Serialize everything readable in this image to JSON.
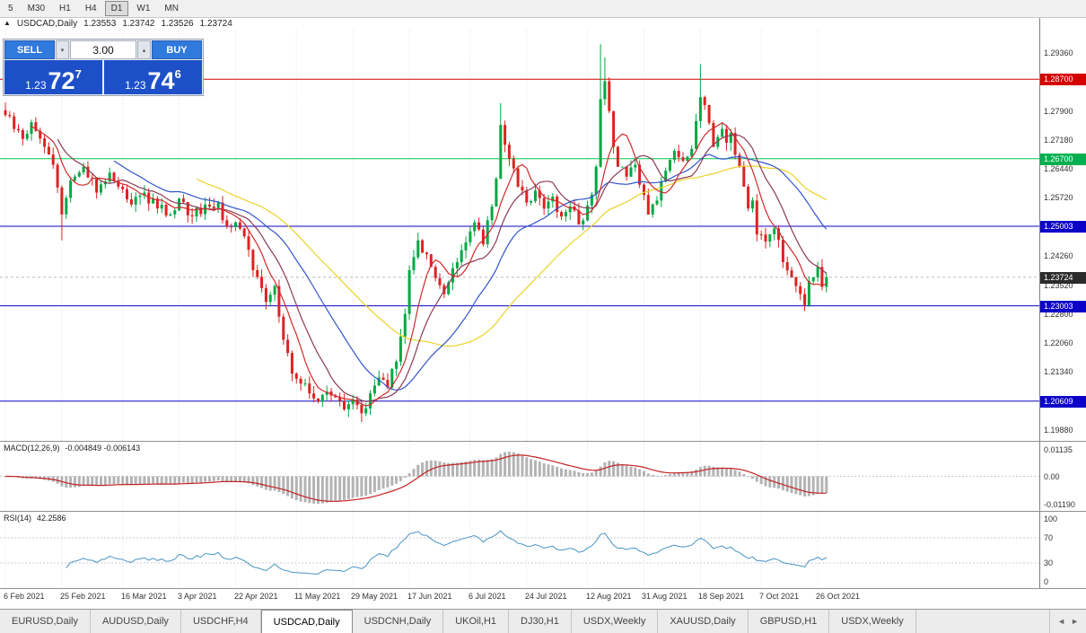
{
  "toolbar": {
    "timeframes": [
      "5",
      "M30",
      "H1",
      "H4",
      "D1",
      "W1",
      "MN"
    ],
    "active": "D1"
  },
  "icons": {
    "collapse": "▲",
    "spinner_up": "▴",
    "spinner_down": "▾",
    "tab_scroll_left": "◄",
    "tab_scroll_right": "►"
  },
  "chart_header": {
    "symbol": "USDCAD,Daily",
    "open": "1.23553",
    "high": "1.23742",
    "low": "1.23526",
    "close": "1.23724"
  },
  "trade_panel": {
    "sell_label": "SELL",
    "buy_label": "BUY",
    "volume": "3.00",
    "sell_price": {
      "prefix": "1.23",
      "big": "72",
      "sup": "7"
    },
    "buy_price": {
      "prefix": "1.23",
      "big": "74",
      "sup": "6"
    }
  },
  "price_axis": {
    "labels": [
      "1.29360",
      "1.27900",
      "1.27180",
      "1.26440",
      "1.25720",
      "1.24260",
      "1.23520",
      "1.22800",
      "1.22060",
      "1.21340",
      "1.19880"
    ],
    "badges": [
      {
        "text": "1.28700",
        "value": 1.287,
        "color": "#d40000"
      },
      {
        "text": "1.26700",
        "value": 1.267,
        "color": "#00b050"
      },
      {
        "text": "1.25003",
        "value": 1.25003,
        "color": "#0d00c8"
      },
      {
        "text": "1.23724",
        "value": 1.23724,
        "color": "#2b2b2b"
      },
      {
        "text": "1.23003",
        "value": 1.23003,
        "color": "#0d00c8"
      },
      {
        "text": "1.20609",
        "value": 1.20609,
        "color": "#0d00c8"
      }
    ]
  },
  "indicators": {
    "macd": {
      "label": "MACD(12,26,9)",
      "values": "-0.004849 -0.006143",
      "axis": [
        "0.01135",
        "0.00",
        "-0.01190"
      ]
    },
    "rsi": {
      "label": "RSI(14)",
      "value": "42.2586",
      "axis": [
        "100",
        "70",
        "30",
        "0"
      ]
    }
  },
  "dates": [
    "6 Feb 2021",
    "25 Feb 2021",
    "16 Mar 2021",
    "3 Apr 2021",
    "22 Apr 2021",
    "11 May 2021",
    "29 May 2021",
    "17 Jun 2021",
    "6 Jul 2021",
    "24 Jul 2021",
    "12 Aug 2021",
    "31 Aug 2021",
    "18 Sep 2021",
    "7 Oct 2021",
    "26 Oct 2021"
  ],
  "tabs": {
    "items": [
      "EURUSD,Daily",
      "AUDUSD,Daily",
      "USDCHF,H4",
      "USDCAD,Daily",
      "USDCNH,Daily",
      "UKOil,H1",
      "DJ30,H1",
      "USDX,Weekly",
      "XAUUSD,Daily",
      "GBPUSD,H1",
      "USDX,Weekly"
    ],
    "active_index": 3
  },
  "chart_data": {
    "type": "candlestick",
    "symbol": "USDCAD",
    "timeframe": "Daily",
    "ohlc_display": {
      "open": 1.23553,
      "high": 1.23742,
      "low": 1.23526,
      "close": 1.23724
    },
    "axis_top_price": 1.2936,
    "axis_bottom_price": 1.1988,
    "current_price": 1.23724,
    "colors": {
      "up": "#00a843",
      "down": "#dd2222",
      "macd_hist": "#b3b3b3",
      "macd_signal": "#c42222",
      "rsi_line": "#4894c4"
    },
    "h_lines": [
      {
        "value": 1.287,
        "color": "#d40000"
      },
      {
        "value": 1.267,
        "color": "#00c84b"
      },
      {
        "value": 1.25003,
        "color": "#0d00c8"
      },
      {
        "value": 1.23003,
        "color": "#0d00c8"
      },
      {
        "value": 1.20609,
        "color": "#0d00c8"
      }
    ],
    "moving_averages": [
      {
        "period": 45,
        "color": "#ecd228"
      },
      {
        "period": 26,
        "color": "#3355cc"
      },
      {
        "period": 13,
        "color": "#8b3a55"
      },
      {
        "period": 7,
        "color": "#d02a2a"
      }
    ],
    "macd": {
      "fast": 12,
      "slow": 26,
      "signal": 9,
      "main": -0.004849,
      "signal_value": -0.006143
    },
    "rsi": {
      "period": 14,
      "value": 42.2586,
      "levels": [
        70,
        30
      ]
    },
    "candles": {
      "count": 190,
      "anchors": [
        [
          0,
          1.278
        ],
        [
          2,
          1.2745
        ],
        [
          4,
          1.272
        ],
        [
          6,
          1.2762
        ],
        [
          9,
          1.27
        ],
        [
          11,
          1.2655
        ],
        [
          13,
          1.253
        ],
        [
          15,
          1.2615
        ],
        [
          18,
          1.265
        ],
        [
          21,
          1.2585
        ],
        [
          24,
          1.2635
        ],
        [
          26,
          1.26
        ],
        [
          29,
          1.2555
        ],
        [
          32,
          1.2585
        ],
        [
          35,
          1.2545
        ],
        [
          38,
          1.253
        ],
        [
          40,
          1.257
        ],
        [
          43,
          1.2525
        ],
        [
          46,
          1.2555
        ],
        [
          49,
          1.256
        ],
        [
          51,
          1.25
        ],
        [
          53,
          1.251
        ],
        [
          55,
          1.2475
        ],
        [
          57,
          1.239
        ],
        [
          59,
          1.2345
        ],
        [
          60,
          1.231
        ],
        [
          62,
          1.235
        ],
        [
          64,
          1.2215
        ],
        [
          66,
          1.213
        ],
        [
          68,
          1.2105
        ],
        [
          70,
          1.208
        ],
        [
          72,
          1.206
        ],
        [
          74,
          1.2085
        ],
        [
          76,
          1.207
        ],
        [
          78,
          1.204
        ],
        [
          80,
          1.2065
        ],
        [
          82,
          1.203
        ],
        [
          84,
          1.208
        ],
        [
          86,
          1.212
        ],
        [
          88,
          1.2095
        ],
        [
          90,
          1.216
        ],
        [
          92,
          1.228
        ],
        [
          93,
          1.239
        ],
        [
          95,
          1.2465
        ],
        [
          97,
          1.243
        ],
        [
          99,
          1.237
        ],
        [
          101,
          1.233
        ],
        [
          103,
          1.2395
        ],
        [
          105,
          1.244
        ],
        [
          106,
          1.246
        ],
        [
          108,
          1.251
        ],
        [
          110,
          1.2455
        ],
        [
          112,
          1.255
        ],
        [
          113,
          1.262
        ],
        [
          114,
          1.2755
        ],
        [
          116,
          1.267
        ],
        [
          118,
          1.26
        ],
        [
          120,
          1.256
        ],
        [
          122,
          1.259
        ],
        [
          124,
          1.2545
        ],
        [
          126,
          1.2575
        ],
        [
          128,
          1.2525
        ],
        [
          130,
          1.255
        ],
        [
          132,
          1.2505
        ],
        [
          133,
          1.2515
        ],
        [
          135,
          1.258
        ],
        [
          136,
          1.265
        ],
        [
          137,
          1.282
        ],
        [
          138,
          1.2865
        ],
        [
          139,
          1.279
        ],
        [
          140,
          1.27
        ],
        [
          141,
          1.265
        ],
        [
          143,
          1.2625
        ],
        [
          145,
          1.2655
        ],
        [
          146,
          1.2605
        ],
        [
          148,
          1.253
        ],
        [
          150,
          1.2565
        ],
        [
          152,
          1.264
        ],
        [
          154,
          1.269
        ],
        [
          156,
          1.2665
        ],
        [
          158,
          1.2695
        ],
        [
          159,
          1.2765
        ],
        [
          160,
          1.2825
        ],
        [
          161,
          1.2805
        ],
        [
          162,
          1.276
        ],
        [
          163,
          1.27
        ],
        [
          164,
          1.2725
        ],
        [
          165,
          1.2745
        ],
        [
          166,
          1.271
        ],
        [
          167,
          1.2735
        ],
        [
          168,
          1.268
        ],
        [
          170,
          1.26
        ],
        [
          171,
          1.2545
        ],
        [
          172,
          1.2565
        ],
        [
          173,
          1.248
        ],
        [
          175,
          1.2462
        ],
        [
          177,
          1.2495
        ],
        [
          179,
          1.241
        ],
        [
          181,
          1.2372
        ],
        [
          183,
          1.233
        ],
        [
          184,
          1.2302
        ],
        [
          185,
          1.2362
        ],
        [
          186,
          1.2372
        ],
        [
          187,
          1.2398
        ],
        [
          188,
          1.2348
        ],
        [
          189,
          1.23724
        ]
      ],
      "spikes": {
        "13": {
          "low": 1.2465
        },
        "82": {
          "low": 1.2008
        },
        "114": {
          "high": 1.281
        },
        "137": {
          "high": 1.2958
        },
        "138": {
          "high": 1.2925
        },
        "160": {
          "high": 1.2908
        },
        "184": {
          "low": 1.2287
        }
      }
    }
  }
}
